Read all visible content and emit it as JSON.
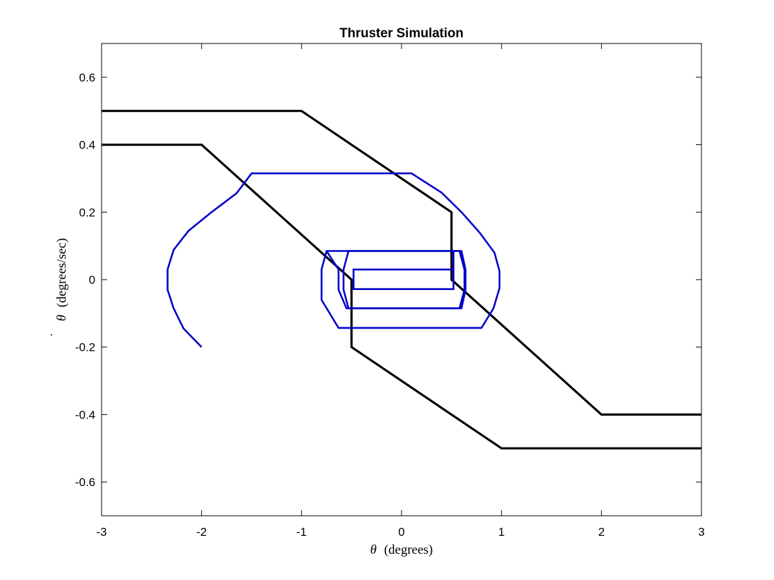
{
  "chart_data": {
    "type": "line",
    "title": "Thruster Simulation",
    "xlabel_symbol": "θ",
    "xlabel_text": "(degrees)",
    "ylabel_symbol": "θ",
    "ylabel_dot": "˙",
    "ylabel_text": "(degrees/sec)",
    "xlim": [
      -3,
      3
    ],
    "ylim": [
      -0.7,
      0.7
    ],
    "xticks": [
      -3,
      -2,
      -1,
      0,
      1,
      2,
      3
    ],
    "yticks": [
      -0.6,
      -0.4,
      -0.2,
      0,
      0.2,
      0.4,
      0.6
    ],
    "xtick_labels": [
      "-3",
      "-2",
      "-1",
      "0",
      "1",
      "2",
      "3"
    ],
    "ytick_labels": [
      "-0.6",
      "-0.4",
      "-0.2",
      "0",
      "0.2",
      "0.4",
      "0.6"
    ],
    "grid": false,
    "colors": {
      "boundary": "#000000",
      "trajectory": "#0000cc"
    },
    "series": [
      {
        "color": "#000000",
        "x": [
          -3,
          -1,
          0.5,
          0.5,
          2,
          3
        ],
        "y": [
          0.5,
          0.5,
          0.2,
          0,
          -0.4,
          -0.4
        ]
      },
      {
        "color": "#000000",
        "x": [
          -3,
          -2,
          -0.5,
          -0.5,
          1,
          3
        ],
        "y": [
          0.4,
          0.4,
          0,
          -0.2,
          -0.5,
          -0.5
        ]
      },
      {
        "color": "#0000cc",
        "x": [
          -2.0,
          -2.18,
          -2.28,
          -2.34,
          -2.34,
          -2.28,
          -2.13,
          -1.9,
          -1.65,
          -1.5,
          0.1,
          0.4,
          0.6,
          0.78,
          0.93,
          0.98,
          0.98,
          0.92,
          0.8,
          -0.63,
          -0.8,
          -0.8,
          -0.75,
          0.58,
          0.63,
          0.63,
          0.58,
          -0.53,
          -0.58,
          -0.58,
          -0.53,
          0.52,
          0.52,
          0.52,
          -0.48,
          -0.48,
          -0.48,
          0.52,
          0.52
        ],
        "y": [
          -0.2,
          -0.145,
          -0.085,
          -0.03,
          0.03,
          0.088,
          0.145,
          0.2,
          0.256,
          0.315,
          0.315,
          0.258,
          0.2,
          0.14,
          0.08,
          0.025,
          -0.025,
          -0.085,
          -0.143,
          -0.143,
          -0.06,
          0.03,
          0.085,
          0.085,
          0.03,
          -0.03,
          -0.085,
          -0.085,
          -0.03,
          0.03,
          0.085,
          0.085,
          0.03,
          -0.028,
          -0.028,
          0.028,
          0.03,
          0.03,
          -0.028
        ]
      },
      {
        "color": "#0000cc",
        "x": [
          -0.75,
          -0.63,
          -0.63,
          -0.55,
          0.6,
          0.64,
          0.64,
          0.6,
          -0.55
        ],
        "y": [
          0.085,
          0.03,
          -0.03,
          -0.085,
          -0.085,
          -0.03,
          0.03,
          0.085,
          0.085
        ]
      }
    ]
  }
}
